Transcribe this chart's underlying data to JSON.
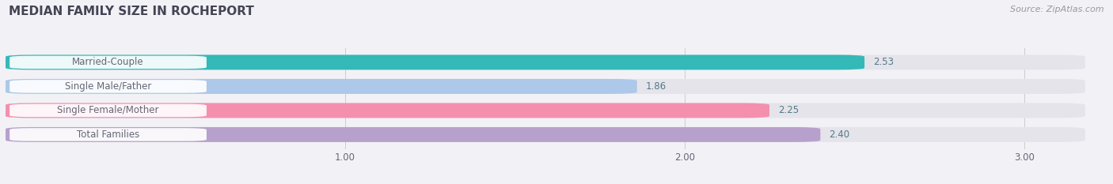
{
  "title": "MEDIAN FAMILY SIZE IN ROCHEPORT",
  "source": "Source: ZipAtlas.com",
  "categories": [
    "Married-Couple",
    "Single Male/Father",
    "Single Female/Mother",
    "Total Families"
  ],
  "values": [
    2.53,
    1.86,
    2.25,
    2.4
  ],
  "bar_colors": [
    "#35b8b8",
    "#adc8e8",
    "#f490ae",
    "#b8a0cc"
  ],
  "bar_bg_color": "#e4e4ea",
  "xlim_min": 0.0,
  "xlim_max": 3.18,
  "xticks": [
    1.0,
    2.0,
    3.0
  ],
  "label_color": "#666677",
  "value_color": "#557788",
  "title_color": "#444455",
  "source_color": "#999999",
  "title_fontsize": 11,
  "label_fontsize": 8.5,
  "value_fontsize": 8.5,
  "tick_fontsize": 8.5,
  "bg_color": "#f2f2f6"
}
